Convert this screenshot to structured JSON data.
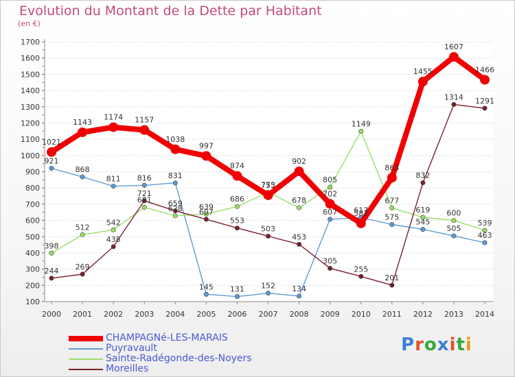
{
  "header": {
    "title": "Evolution du Montant de la Dette par Habitant",
    "subtitle": "(en €)"
  },
  "logo": {
    "text": "Proxiti",
    "colors": [
      "#3a7fd5",
      "#e0522a",
      "#36a83a",
      "#3a7fd5",
      "#e0522a",
      "#36a83a",
      "#e89a1e"
    ]
  },
  "chart_data": {
    "type": "line",
    "x": [
      2000,
      2001,
      2002,
      2003,
      2004,
      2005,
      2006,
      2007,
      2008,
      2009,
      2010,
      2011,
      2012,
      2013,
      2014
    ],
    "ylim": [
      100,
      1700
    ],
    "yticks": [
      100,
      200,
      300,
      400,
      500,
      600,
      700,
      800,
      900,
      1000,
      1100,
      1200,
      1300,
      1400,
      1500,
      1600,
      1700
    ],
    "grid": "horizontal dotted",
    "legend_position": "bottom",
    "series": [
      {
        "name": "CHAMPAGNé-LES-MARAIS",
        "color": "#f00000",
        "values": [
          1021,
          1143,
          1174,
          1157,
          1038,
          997,
          874,
          755,
          902,
          702,
          582,
          863,
          1455,
          1607,
          1466
        ]
      },
      {
        "name": "Puyravault",
        "color": "#5b9bd5",
        "values": [
          921,
          868,
          811,
          816,
          831,
          145,
          131,
          152,
          134,
          607,
          617,
          575,
          545,
          505,
          463
        ]
      },
      {
        "name": "Sainte-Radégonde-des-Noyers",
        "color": "#99dd66",
        "values": [
          398,
          512,
          542,
          681,
          628,
          639,
          686,
          773,
          678,
          805,
          1149,
          677,
          619,
          600,
          539
        ]
      },
      {
        "name": "Moreilles",
        "color": "#7a1f2a",
        "values": [
          244,
          269,
          438,
          721,
          659,
          607,
          553,
          503,
          453,
          305,
          255,
          201,
          832,
          1314,
          1291
        ]
      }
    ]
  }
}
